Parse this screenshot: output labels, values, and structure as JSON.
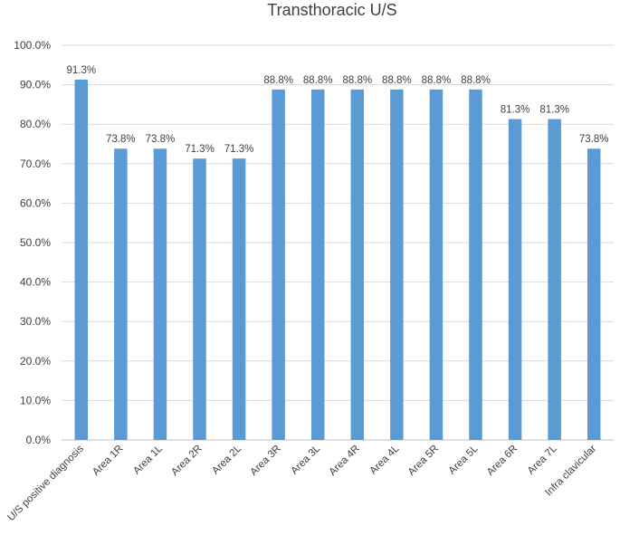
{
  "chart_data": {
    "type": "bar",
    "title": "Transthoracic U/S",
    "categories": [
      "U/S positive diagnosis",
      "Area 1R",
      "Area 1L",
      "Area 2R",
      "Area 2L",
      "Area 3R",
      "Area 3L",
      "Area 4R",
      "Area 4L",
      "Area 5R",
      "Area 5L",
      "Area 6R",
      "Area 7L",
      "Infra clavicular"
    ],
    "values": [
      91.3,
      73.8,
      73.8,
      71.3,
      71.3,
      88.8,
      88.8,
      88.8,
      88.8,
      88.8,
      88.8,
      81.3,
      81.3,
      73.8
    ],
    "value_labels": [
      "91.3%",
      "73.8%",
      "73.8%",
      "71.3%",
      "71.3%",
      "88.8%",
      "88.8%",
      "88.8%",
      "88.8%",
      "88.8%",
      "88.8%",
      "81.3%",
      "81.3%",
      "73.8%"
    ],
    "y_ticks": [
      "0.0%",
      "10.0%",
      "20.0%",
      "30.0%",
      "40.0%",
      "50.0%",
      "60.0%",
      "70.0%",
      "80.0%",
      "90.0%",
      "100.0%"
    ],
    "ylim": [
      0,
      100
    ],
    "grid": true,
    "legend": "none",
    "bar_color": "#5b9bd5"
  }
}
